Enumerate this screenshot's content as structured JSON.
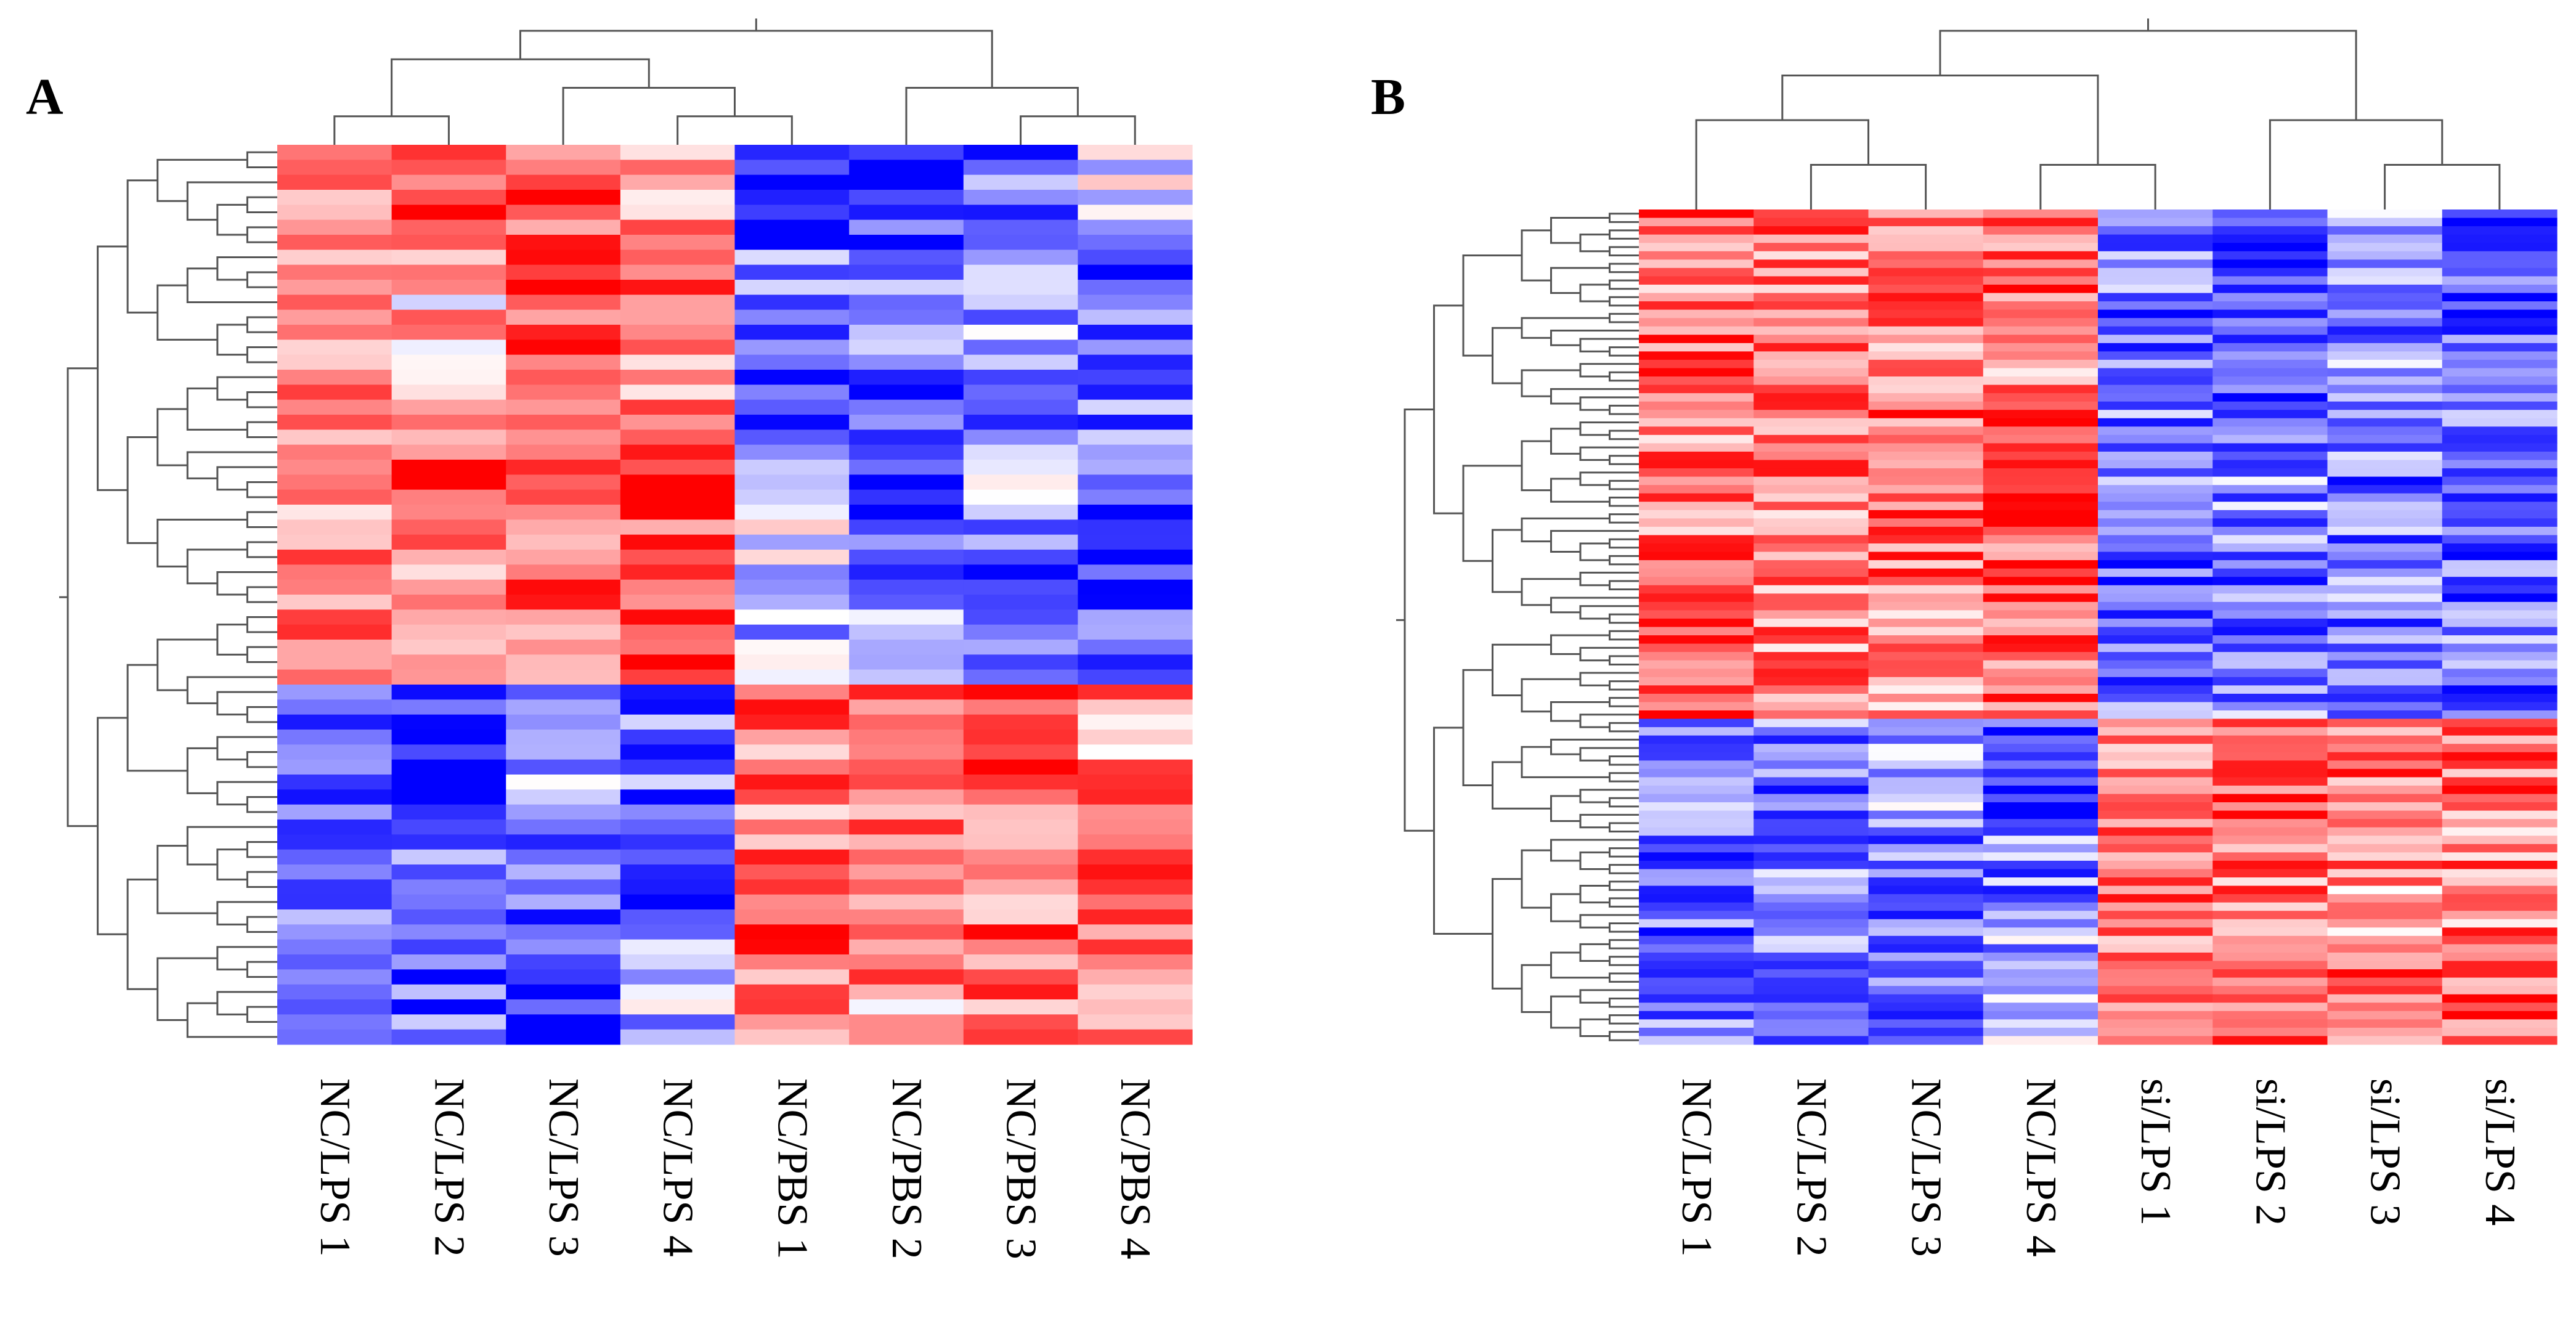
{
  "chart_data": [
    {
      "type": "heatmap",
      "panel_label": "A",
      "columns": [
        "NC/LPS 1",
        "NC/LPS 2",
        "NC/LPS 3",
        "NC/LPS 4",
        "NC/PBS 1",
        "NC/PBS 2",
        "NC/PBS 3",
        "NC/PBS 4"
      ],
      "row_count": 60,
      "color_scale": {
        "low": "#0000ff",
        "mid": "#ffffff",
        "high": "#ff0000"
      },
      "column_dendrogram": true,
      "row_dendrogram": true,
      "row_blocks": [
        {
          "rows": 7,
          "pattern": [
            0.55,
            0.75,
            0.7,
            0.35,
            -0.8,
            -0.75,
            -0.6,
            -0.2
          ]
        },
        {
          "rows": 7,
          "pattern": [
            0.6,
            0.25,
            0.8,
            0.5,
            -0.55,
            -0.5,
            -0.35,
            -0.7
          ]
        },
        {
          "rows": 7,
          "pattern": [
            0.5,
            0.45,
            0.85,
            0.55,
            -0.6,
            -0.75,
            -0.5,
            -0.55
          ]
        },
        {
          "rows": 7,
          "pattern": [
            0.5,
            0.6,
            0.5,
            0.75,
            -0.2,
            -0.75,
            -0.35,
            -0.7
          ]
        },
        {
          "rows": 8,
          "pattern": [
            0.55,
            0.35,
            0.6,
            0.85,
            -0.35,
            -0.45,
            -0.6,
            -0.75
          ]
        },
        {
          "rows": 8,
          "pattern": [
            -0.5,
            -0.85,
            -0.3,
            -0.6,
            0.6,
            0.5,
            0.75,
            0.45
          ]
        },
        {
          "rows": 8,
          "pattern": [
            -0.45,
            -0.5,
            -0.55,
            -0.65,
            0.55,
            0.45,
            0.6,
            0.6
          ]
        },
        {
          "rows": 8,
          "pattern": [
            -0.35,
            -0.65,
            -0.8,
            -0.25,
            0.65,
            0.4,
            0.6,
            0.55
          ]
        }
      ]
    },
    {
      "type": "heatmap",
      "panel_label": "B",
      "columns": [
        "NC/LPS 1",
        "NC/LPS 2",
        "NC/LPS 3",
        "NC/LPS 4",
        "si/LPS 1",
        "si/LPS 2",
        "si/LPS 3",
        "si/LPS 4"
      ],
      "row_count": 100,
      "color_scale": {
        "low": "#0000ff",
        "mid": "#ffffff",
        "high": "#ff0000"
      },
      "column_dendrogram": true,
      "row_dendrogram": true,
      "row_blocks": [
        {
          "rows": 12,
          "pattern": [
            0.55,
            0.5,
            0.55,
            0.6,
            -0.55,
            -0.7,
            -0.3,
            -0.75
          ]
        },
        {
          "rows": 12,
          "pattern": [
            0.6,
            0.6,
            0.5,
            0.5,
            -0.6,
            -0.65,
            -0.45,
            -0.7
          ]
        },
        {
          "rows": 12,
          "pattern": [
            0.5,
            0.55,
            0.65,
            0.75,
            -0.5,
            -0.45,
            -0.55,
            -0.6
          ]
        },
        {
          "rows": 12,
          "pattern": [
            0.55,
            0.45,
            0.6,
            0.7,
            -0.6,
            -0.55,
            -0.5,
            -0.65
          ]
        },
        {
          "rows": 13,
          "pattern": [
            0.7,
            0.5,
            0.45,
            0.55,
            -0.5,
            -0.5,
            -0.55,
            -0.55
          ]
        },
        {
          "rows": 13,
          "pattern": [
            -0.5,
            -0.55,
            -0.4,
            -0.8,
            0.6,
            0.65,
            0.6,
            0.55
          ]
        },
        {
          "rows": 13,
          "pattern": [
            -0.6,
            -0.45,
            -0.5,
            -0.5,
            0.55,
            0.55,
            0.45,
            0.5
          ]
        },
        {
          "rows": 13,
          "pattern": [
            -0.55,
            -0.5,
            -0.7,
            -0.35,
            0.6,
            0.5,
            0.55,
            0.6
          ]
        }
      ]
    }
  ]
}
